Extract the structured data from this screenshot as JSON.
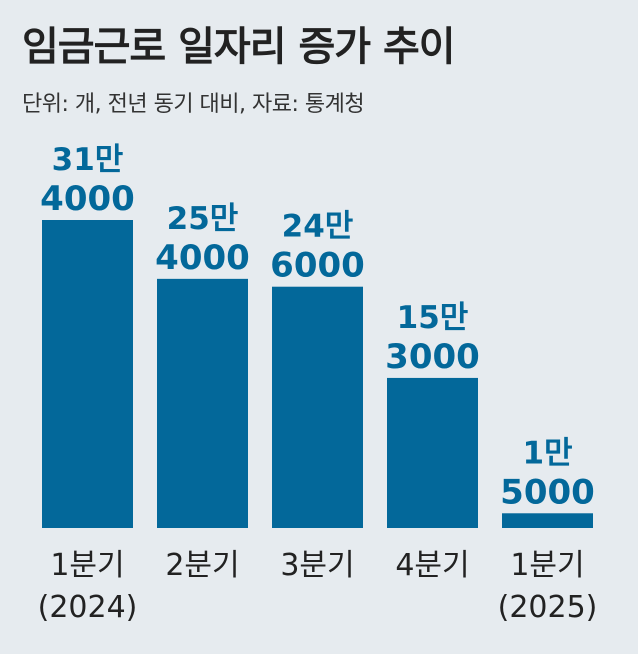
{
  "title": "임금근로 일자리 증가 추이",
  "subtitle": "단위: 개, 전년 동기 대비, 자료: 통계청",
  "colors": {
    "bar": "#03689a",
    "value_label": "#03689a",
    "axis_label": "#222222",
    "background": "#e6ebef"
  },
  "chart_data": {
    "type": "bar",
    "categories": [
      {
        "line1": "1분기",
        "line2": "(2024)"
      },
      {
        "line1": "2분기",
        "line2": ""
      },
      {
        "line1": "3분기",
        "line2": ""
      },
      {
        "line1": "4분기",
        "line2": ""
      },
      {
        "line1": "1분기",
        "line2": "(2025)"
      }
    ],
    "values": [
      314000,
      254000,
      246000,
      153000,
      15000
    ],
    "value_labels": [
      {
        "line1": "31만",
        "line2": "4000"
      },
      {
        "line1": "25만",
        "line2": "4000"
      },
      {
        "line1": "24만",
        "line2": "6000"
      },
      {
        "line1": "15만",
        "line2": "3000"
      },
      {
        "line1": "1만",
        "line2": "5000"
      }
    ],
    "title": "임금근로 일자리 증가 추이",
    "xlabel": "",
    "ylabel": "",
    "ylim": [
      0,
      314000
    ],
    "grid": false,
    "legend": "none"
  }
}
